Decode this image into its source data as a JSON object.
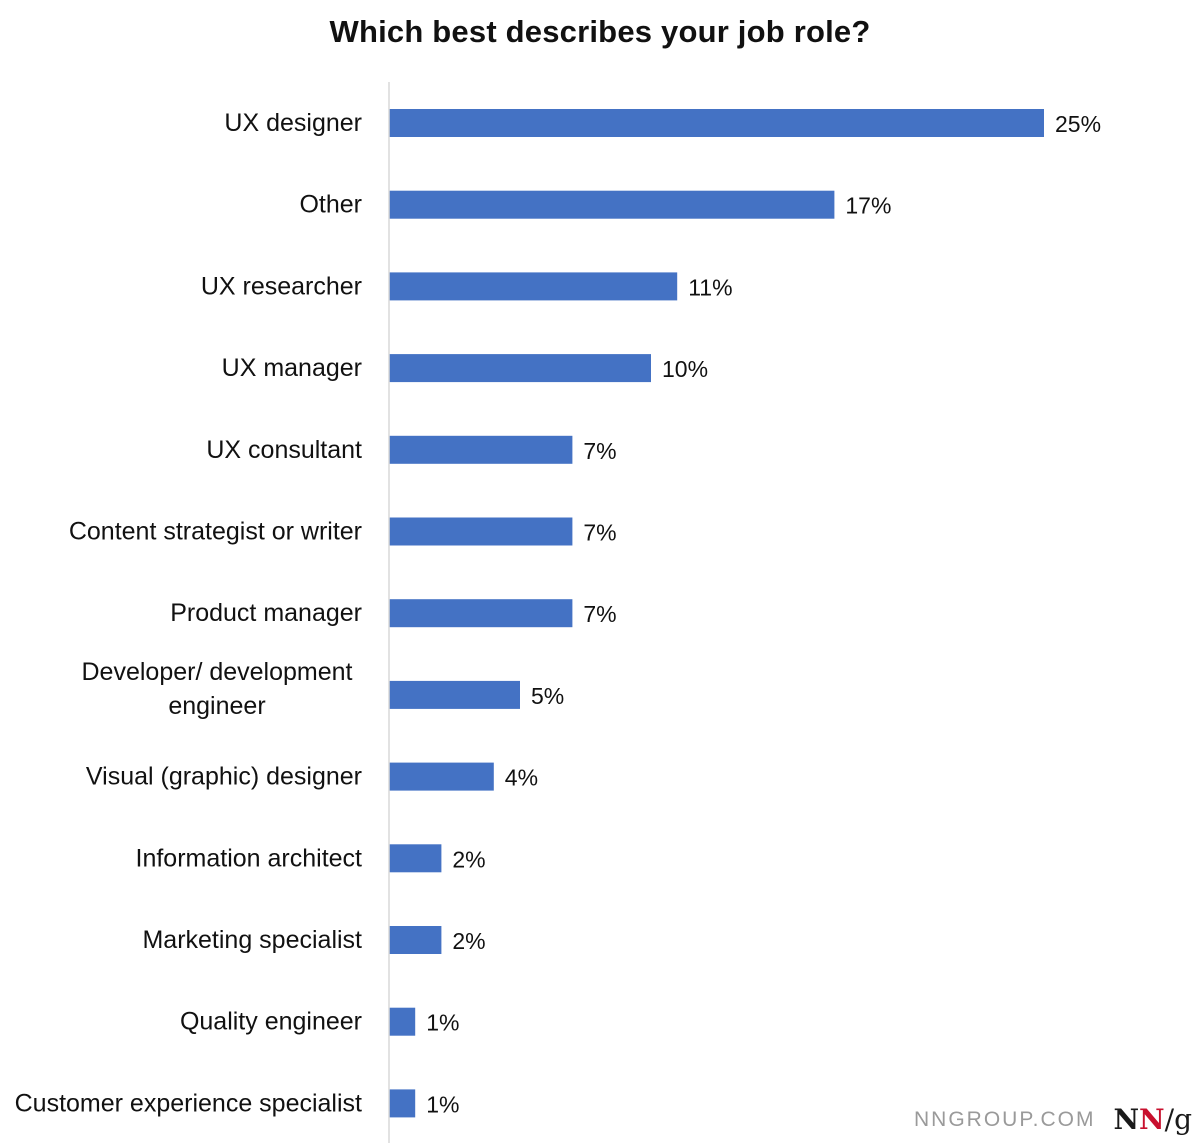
{
  "chart_data": {
    "type": "bar",
    "orientation": "horizontal",
    "title": "Which best describes your job role?",
    "categories": [
      [
        "UX designer"
      ],
      [
        "Other"
      ],
      [
        "UX researcher"
      ],
      [
        "UX manager"
      ],
      [
        "UX consultant"
      ],
      [
        "Content strategist or writer"
      ],
      [
        "Product manager"
      ],
      [
        "Developer/ development",
        "engineer"
      ],
      [
        "Visual (graphic) designer"
      ],
      [
        "Information architect"
      ],
      [
        "Marketing specialist"
      ],
      [
        "Quality engineer"
      ],
      [
        "Customer experience specialist"
      ]
    ],
    "values": [
      25,
      17,
      11,
      10,
      7,
      7,
      7,
      5,
      4,
      2,
      2,
      1,
      1
    ],
    "value_labels": [
      "25%",
      "17%",
      "11%",
      "10%",
      "7%",
      "7%",
      "7%",
      "5%",
      "4%",
      "2%",
      "2%",
      "1%",
      "1%"
    ],
    "value_unit": "%",
    "xlim": [
      0,
      25
    ],
    "grid": false,
    "legend": "none",
    "bar_color": "#4472c4",
    "axis_color": "#d9d9d9"
  },
  "watermark": {
    "site": "NNGROUP.COM",
    "logo": {
      "n1": "N",
      "n2": "N",
      "slash_g": "/g"
    }
  }
}
